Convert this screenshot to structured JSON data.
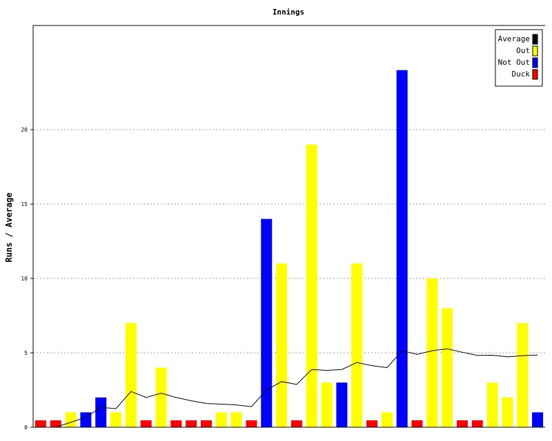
{
  "chart_data": {
    "type": "bar",
    "title": "Innings",
    "xlabel": "",
    "ylabel": "Runs / Average",
    "ylim": [
      0,
      27
    ],
    "yticks": [
      0,
      5,
      10,
      15,
      20
    ],
    "grid": true,
    "legend_position": "top-right",
    "legend": [
      {
        "name": "Average",
        "color": "#000000"
      },
      {
        "name": "Out",
        "color": "#ffff00"
      },
      {
        "name": "Not Out",
        "color": "#0000ff"
      },
      {
        "name": "Duck",
        "color": "#ff0000"
      }
    ],
    "innings": [
      {
        "runs": 0,
        "type": "Duck"
      },
      {
        "runs": 0,
        "type": "Duck"
      },
      {
        "runs": 1,
        "type": "Out"
      },
      {
        "runs": 1,
        "type": "Not Out"
      },
      {
        "runs": 2,
        "type": "Not Out"
      },
      {
        "runs": 1,
        "type": "Out"
      },
      {
        "runs": 7,
        "type": "Out"
      },
      {
        "runs": 0,
        "type": "Duck"
      },
      {
        "runs": 4,
        "type": "Out"
      },
      {
        "runs": 0,
        "type": "Duck"
      },
      {
        "runs": 0,
        "type": "Duck"
      },
      {
        "runs": 0,
        "type": "Duck"
      },
      {
        "runs": 1,
        "type": "Out"
      },
      {
        "runs": 1,
        "type": "Out"
      },
      {
        "runs": 0,
        "type": "Duck"
      },
      {
        "runs": 14,
        "type": "Not Out"
      },
      {
        "runs": 11,
        "type": "Out"
      },
      {
        "runs": 0,
        "type": "Duck"
      },
      {
        "runs": 19,
        "type": "Out"
      },
      {
        "runs": 3,
        "type": "Out"
      },
      {
        "runs": 3,
        "type": "Not Out"
      },
      {
        "runs": 11,
        "type": "Out"
      },
      {
        "runs": 0,
        "type": "Duck"
      },
      {
        "runs": 1,
        "type": "Out"
      },
      {
        "runs": 24,
        "type": "Not Out"
      },
      {
        "runs": 0,
        "type": "Duck"
      },
      {
        "runs": 10,
        "type": "Out"
      },
      {
        "runs": 8,
        "type": "Out"
      },
      {
        "runs": 0,
        "type": "Duck"
      },
      {
        "runs": 0,
        "type": "Duck"
      },
      {
        "runs": 3,
        "type": "Out"
      },
      {
        "runs": 2,
        "type": "Out"
      },
      {
        "runs": 7,
        "type": "Out"
      },
      {
        "runs": 1,
        "type": "Not Out"
      }
    ],
    "average": [
      0,
      0,
      0.33,
      0.67,
      1.33,
      1.25,
      2.4,
      2.0,
      2.29,
      2.0,
      1.78,
      1.6,
      1.55,
      1.5,
      1.38,
      2.5,
      3.07,
      2.87,
      3.88,
      3.82,
      3.88,
      4.35,
      4.14,
      4.0,
      5.14,
      4.9,
      5.14,
      5.27,
      5.04,
      4.83,
      4.84,
      4.73,
      4.81,
      4.85
    ]
  }
}
